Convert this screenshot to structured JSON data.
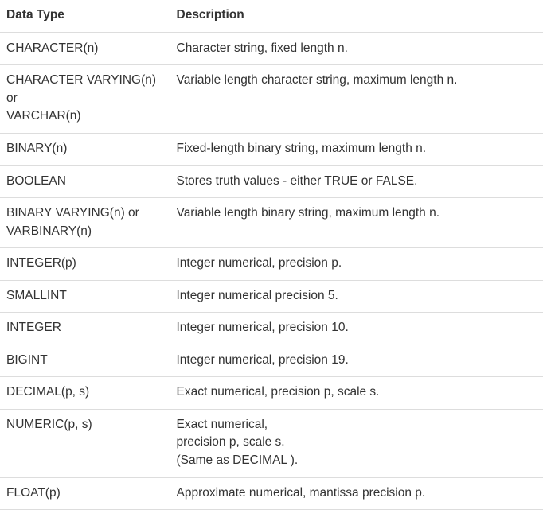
{
  "table": {
    "headers": [
      "Data Type",
      "Description"
    ],
    "rows": [
      {
        "type": [
          "CHARACTER(n)"
        ],
        "description": [
          "Character string, fixed length n."
        ]
      },
      {
        "type": [
          "CHARACTER VARYING(n)",
          "or",
          "VARCHAR(n)"
        ],
        "description": [
          "Variable length character string, maximum length n."
        ]
      },
      {
        "type": [
          "BINARY(n)"
        ],
        "description": [
          "Fixed-length binary string, maximum length n."
        ]
      },
      {
        "type": [
          "BOOLEAN"
        ],
        "description": [
          "Stores truth values - either TRUE or FALSE."
        ]
      },
      {
        "type": [
          "BINARY VARYING(n) or",
          "VARBINARY(n)"
        ],
        "description": [
          "Variable length binary string, maximum length n."
        ]
      },
      {
        "type": [
          "INTEGER(p)"
        ],
        "description": [
          "Integer numerical, precision p."
        ]
      },
      {
        "type": [
          "SMALLINT"
        ],
        "description": [
          "Integer numerical precision 5."
        ]
      },
      {
        "type": [
          "INTEGER"
        ],
        "description": [
          "Integer numerical, precision 10."
        ]
      },
      {
        "type": [
          "BIGINT"
        ],
        "description": [
          "Integer numerical, precision 19."
        ]
      },
      {
        "type": [
          "DECIMAL(p, s)"
        ],
        "description": [
          "Exact numerical, precision p, scale s."
        ]
      },
      {
        "type": [
          "NUMERIC(p, s)"
        ],
        "description": [
          "Exact numerical,",
          "precision p, scale s.",
          "(Same as DECIMAL )."
        ]
      },
      {
        "type": [
          "FLOAT(p)"
        ],
        "description": [
          "Approximate numerical, mantissa precision p."
        ]
      }
    ]
  }
}
